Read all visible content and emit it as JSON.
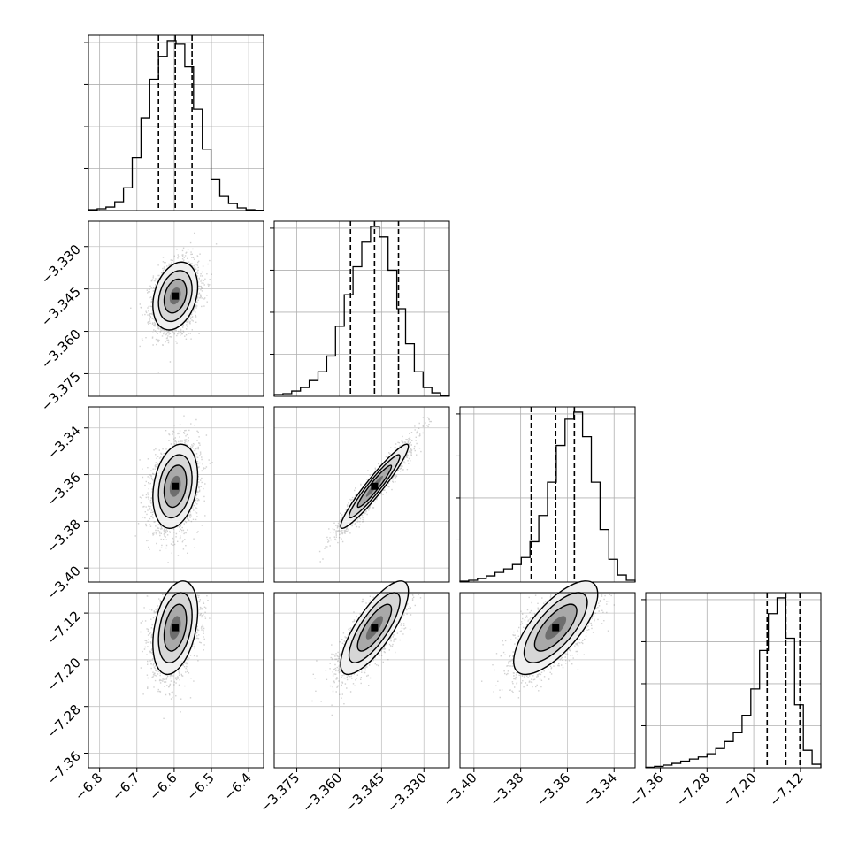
{
  "chart_data": {
    "type": "corner",
    "title": "",
    "grid": true,
    "parameters": [
      {
        "range": [
          -6.83,
          -6.36
        ],
        "quantiles": [
          -6.642,
          -6.597,
          -6.552
        ],
        "ticks": [
          -6.8,
          -6.7,
          -6.6,
          -6.5,
          -6.4
        ],
        "tick_labels": [
          "−6.8",
          "−6.7",
          "−6.6",
          "−6.5",
          "−6.4"
        ]
      },
      {
        "range": [
          -3.383,
          -3.321
        ],
        "quantiles": [
          -3.356,
          -3.3475,
          -3.339
        ],
        "ticks": [
          -3.33,
          -3.345,
          -3.36,
          -3.375
        ],
        "tick_labels": [
          "−3.330",
          "−3.345",
          "−3.360",
          "−3.375"
        ]
      },
      {
        "range": [
          -3.406,
          -3.331
        ],
        "quantiles": [
          -3.3755,
          -3.365,
          -3.357
        ],
        "ticks": [
          -3.34,
          -3.36,
          -3.38,
          -3.4
        ],
        "tick_labels": [
          "−3.34",
          "−3.36",
          "−3.38",
          "−3.40"
        ]
      },
      {
        "range": [
          -7.385,
          -7.085
        ],
        "quantiles": [
          -7.177,
          -7.145,
          -7.121
        ],
        "ticks": [
          -7.12,
          -7.2,
          -7.28,
          -7.36
        ],
        "tick_labels": [
          "−7.12",
          "−7.20",
          "−7.28",
          "−7.36"
        ]
      }
    ],
    "histograms": [
      [
        0.005,
        0.01,
        0.02,
        0.05,
        0.13,
        0.3,
        0.53,
        0.75,
        0.88,
        0.97,
        0.95,
        0.82,
        0.58,
        0.35,
        0.18,
        0.08,
        0.04,
        0.015,
        0.005,
        0.002
      ],
      [
        0.01,
        0.015,
        0.03,
        0.05,
        0.09,
        0.14,
        0.23,
        0.4,
        0.58,
        0.74,
        0.88,
        0.97,
        0.91,
        0.72,
        0.5,
        0.3,
        0.14,
        0.05,
        0.02,
        0.005
      ],
      [
        0.005,
        0.01,
        0.02,
        0.035,
        0.055,
        0.075,
        0.1,
        0.14,
        0.23,
        0.38,
        0.57,
        0.78,
        0.93,
        0.97,
        0.83,
        0.57,
        0.3,
        0.13,
        0.04,
        0.01
      ],
      [
        0.003,
        0.008,
        0.015,
        0.025,
        0.038,
        0.05,
        0.062,
        0.08,
        0.11,
        0.15,
        0.2,
        0.3,
        0.45,
        0.67,
        0.88,
        0.97,
        0.74,
        0.36,
        0.1,
        0.02
      ]
    ],
    "correlations": [
      [
        1,
        0.28,
        0.25,
        0.35
      ],
      [
        0.28,
        1,
        0.95,
        0.78
      ],
      [
        0.25,
        0.95,
        1,
        0.72
      ],
      [
        0.35,
        0.78,
        0.72,
        1
      ]
    ],
    "spreads": [
      0.03,
      0.006,
      0.009,
      0.04
    ]
  }
}
